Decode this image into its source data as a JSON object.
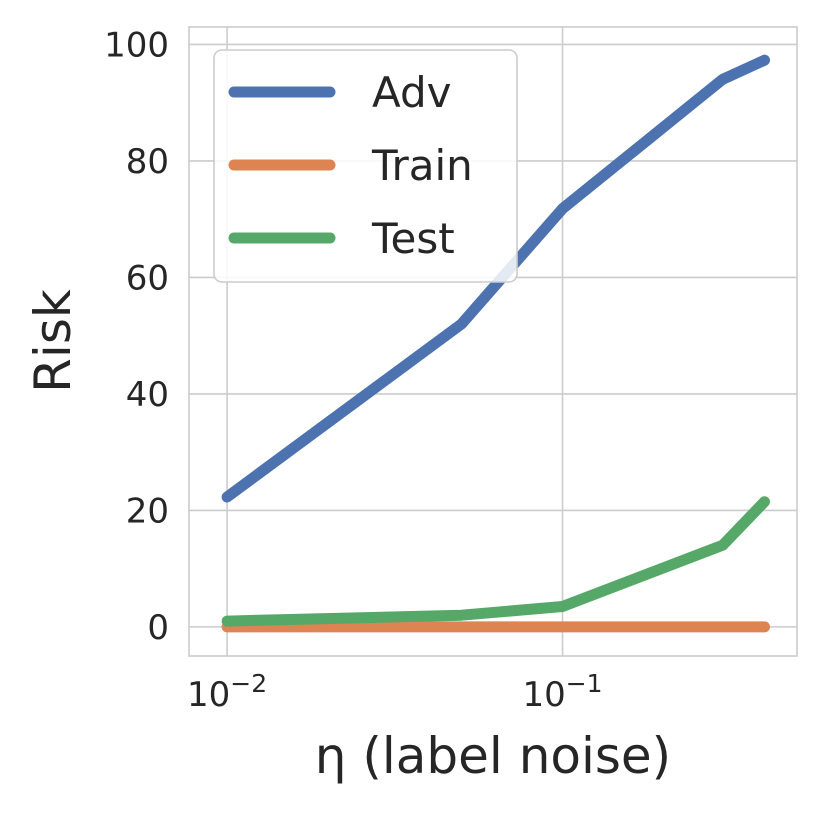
{
  "chart_data": {
    "type": "line",
    "xlabel": "η (label noise)",
    "ylabel": "Risk",
    "xscale": "log",
    "xlim": [
      0.0077,
      0.5
    ],
    "ylim": [
      -5,
      103
    ],
    "x_ticks": [
      {
        "value": 0.01,
        "base": "10",
        "exp": "−2"
      },
      {
        "value": 0.1,
        "base": "10",
        "exp": "−1"
      }
    ],
    "y_ticks": [
      0,
      20,
      40,
      60,
      80,
      100
    ],
    "grid": true,
    "legend": {
      "placement": "top-left"
    },
    "x": [
      0.01,
      0.05,
      0.1,
      0.3,
      0.4
    ],
    "series": [
      {
        "name": "Adv",
        "color": "#4c72b0",
        "values": [
          22.3,
          52.0,
          71.8,
          94.0,
          97.3
        ]
      },
      {
        "name": "Train",
        "color": "#dd8452",
        "values": [
          0,
          0,
          0,
          0,
          0
        ]
      },
      {
        "name": "Test",
        "color": "#55a868",
        "values": [
          1.0,
          2.0,
          3.5,
          14.0,
          21.5
        ]
      }
    ]
  }
}
